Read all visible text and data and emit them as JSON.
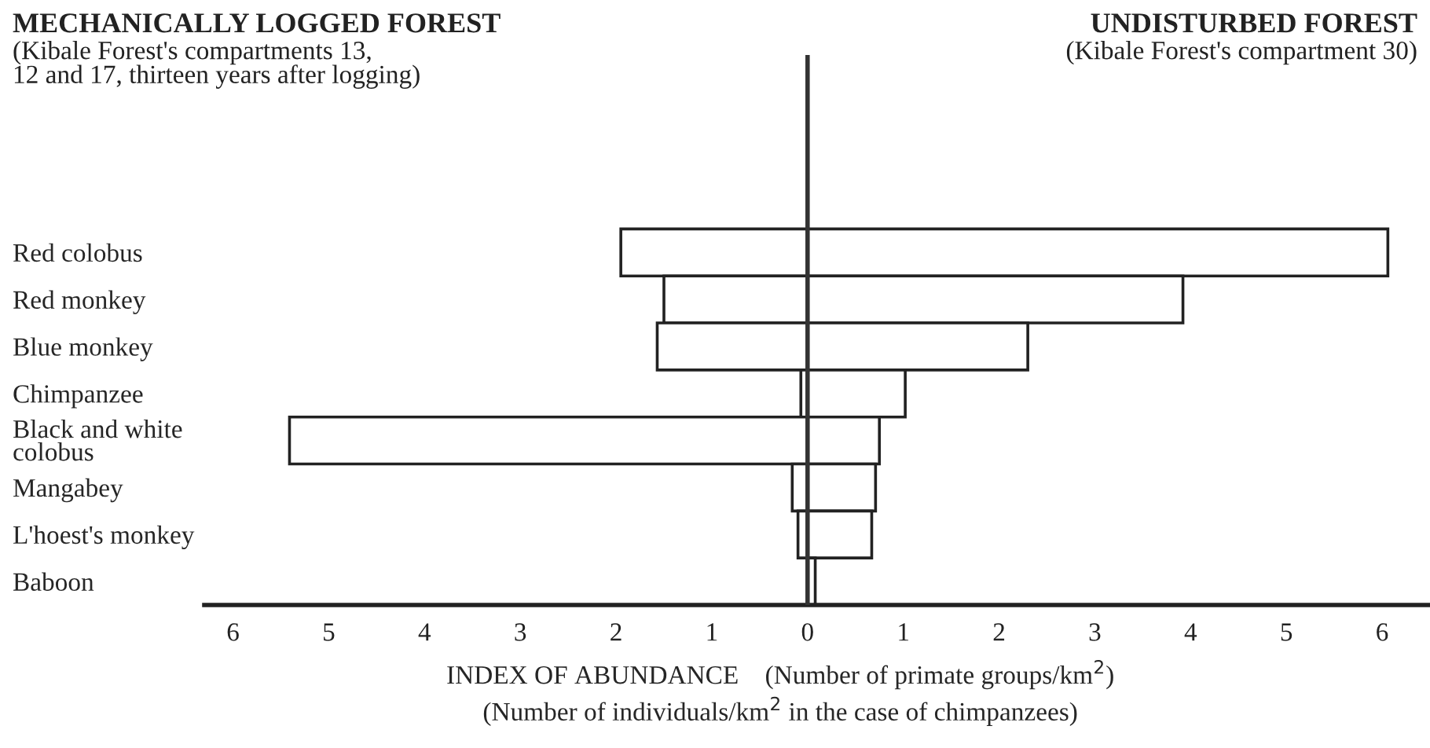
{
  "chart_data": {
    "type": "bar",
    "orientation": "horizontal",
    "xlabel": "INDEX OF ABUNDANCE    (Number of primate groups/km$^{2}$)\n(Number of individuals/km$^{2}$ in the case of chimpanzees)",
    "categories": [
      "Red colobus",
      "Red monkey",
      "Blue monkey",
      "Chimpanzee",
      "Black and white\ncolobus",
      "Mangabey",
      "L'hoest's monkey",
      "Baboon"
    ],
    "series": [
      {
        "color": "#ffffff",
        "values": [
          -1.95,
          -1.5,
          -1.57,
          -0.07,
          -5.41,
          -0.16,
          -0.1,
          null
        ]
      },
      {
        "color": "#ffffff",
        "values": [
          6.06,
          3.92,
          2.3,
          1.02,
          0.75,
          0.71,
          0.67,
          0.08
        ]
      }
    ],
    "stacked": true,
    "annotations": [
      "MECHANICALLY LOGGED FOREST",
      "(Kibale Forest's compartments 13,\n12 and 17, thirteen years after logging)",
      "UNDISTURBED FOREST",
      "(Kibale Forest's compartment 30)"
    ],
    "xlim": [
      -6.3,
      6.5
    ],
    "xticks": [
      {
        "value": -6,
        "label": "6"
      },
      {
        "value": -5,
        "label": "5"
      },
      {
        "value": -4,
        "label": "4"
      },
      {
        "value": -3,
        "label": "3"
      },
      {
        "value": -2,
        "label": "2"
      },
      {
        "value": -1,
        "label": "1"
      },
      0,
      1,
      2,
      3,
      4,
      5,
      6
    ],
    "ref_lines": [
      {
        "axis": "x",
        "value": 0,
        "color": "#333333"
      }
    ],
    "grid": false,
    "legend": false
  }
}
